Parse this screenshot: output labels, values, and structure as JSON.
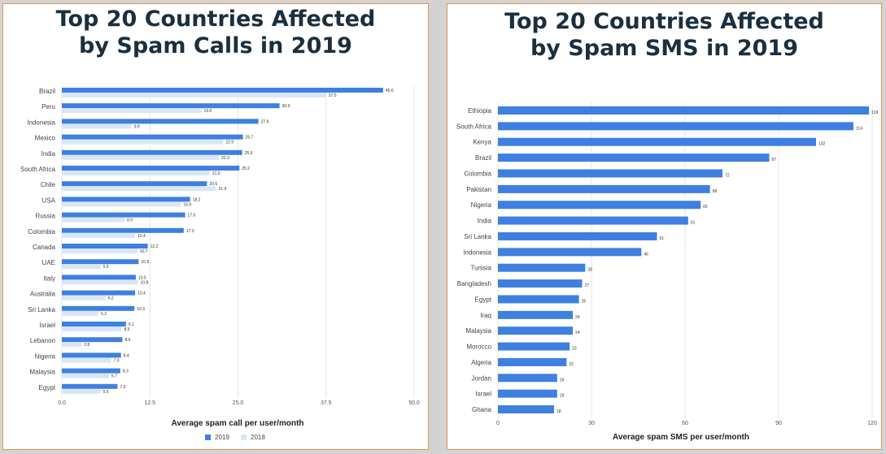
{
  "colors": {
    "series2019": "#3f7fe0",
    "series2018": "#d8e6f7",
    "title": "#1b2f3e",
    "text": "#444444",
    "grid": "#e6e6e6",
    "border": "#e0964a"
  },
  "chart_data": [
    {
      "type": "bar",
      "orientation": "horizontal",
      "title_lines": [
        "Top 20 Countries Affected",
        "by Spam Calls in 2019"
      ],
      "xlabel": "Average spam call per user/month",
      "ylabel": "",
      "xlim": [
        0,
        50
      ],
      "xticks": [
        "0.0",
        "12.5",
        "25.0",
        "37.5",
        "50.0"
      ],
      "grid": true,
      "legend": "bottom",
      "categories": [
        "Brazil",
        "Peru",
        "Indonesia",
        "Mexico",
        "India",
        "South Africa",
        "Chile",
        "USA",
        "Russia",
        "Colombia",
        "Canada",
        "UAE",
        "Italy",
        "Australia",
        "Sri Lanka",
        "Israel",
        "Lebanon",
        "Nigeria",
        "Malaysia",
        "Egypt"
      ],
      "series": [
        {
          "name": "2019",
          "color": "#3f7fe0",
          "values": [
            45.6,
            30.9,
            27.9,
            25.7,
            25.6,
            25.2,
            20.6,
            18.2,
            17.5,
            17.3,
            12.2,
            10.9,
            10.5,
            10.4,
            10.3,
            9.1,
            8.6,
            8.4,
            8.3,
            7.9
          ],
          "labels": [
            "45.6",
            "30.9",
            "27.9",
            "25.7",
            "25.6",
            "25.2",
            "20.6",
            "18.2",
            "17.5",
            "17.3",
            "12.2",
            "10.9",
            "10.5",
            "10.4",
            "10.3",
            "9.1",
            "8.6",
            "8.4",
            "8.3",
            "7.9"
          ]
        },
        {
          "name": "2018",
          "color": "#d8e6f7",
          "values": [
            37.5,
            19.8,
            9.9,
            22.9,
            22.3,
            21.0,
            21.9,
            16.9,
            8.9,
            10.4,
            10.7,
            5.5,
            10.8,
            6.2,
            5.2,
            8.5,
            2.8,
            7.0,
            6.7,
            5.5
          ],
          "labels": [
            "37.5",
            "19.8",
            "9.9",
            "22.9",
            "22.3",
            "21.0",
            "21.9",
            "16.9",
            "8.9",
            "10.4",
            "10.7",
            "5.5",
            "10.8",
            "6.2",
            "5.2",
            "8.5",
            "2.8",
            "7.0",
            "6.7",
            "5.5"
          ]
        }
      ]
    },
    {
      "type": "bar",
      "orientation": "horizontal",
      "title_lines": [
        "Top 20 Countries Affected",
        "by Spam SMS in 2019"
      ],
      "xlabel": "Average spam SMS per user/month",
      "ylabel": "",
      "xlim": [
        0,
        120
      ],
      "xticks": [
        "0",
        "30",
        "60",
        "90",
        "120"
      ],
      "grid": true,
      "categories": [
        "Ethiopia",
        "South Africa",
        "Kenya",
        "Brazil",
        "Colombia",
        "Pakistan",
        "Nigeria",
        "India",
        "Sri Lanka",
        "Indonesia",
        "Tunisia",
        "Bangladesh",
        "Egypt",
        "Iraq",
        "Malaysia",
        "Morocco",
        "Algeria",
        "Jordan",
        "Israel",
        "Ghana"
      ],
      "series": [
        {
          "color": "#3f7fe0",
          "values": [
            119,
            114,
            102,
            87,
            72,
            68,
            65,
            61,
            51,
            46,
            28,
            27,
            26,
            24,
            24,
            23,
            22,
            19,
            19,
            18
          ],
          "labels": [
            "119",
            "114",
            "102",
            "87",
            "72",
            "68",
            "65",
            "61",
            "51",
            "46",
            "28",
            "27",
            "26",
            "24",
            "24",
            "23",
            "22",
            "19",
            "19",
            "18"
          ]
        }
      ]
    }
  ]
}
